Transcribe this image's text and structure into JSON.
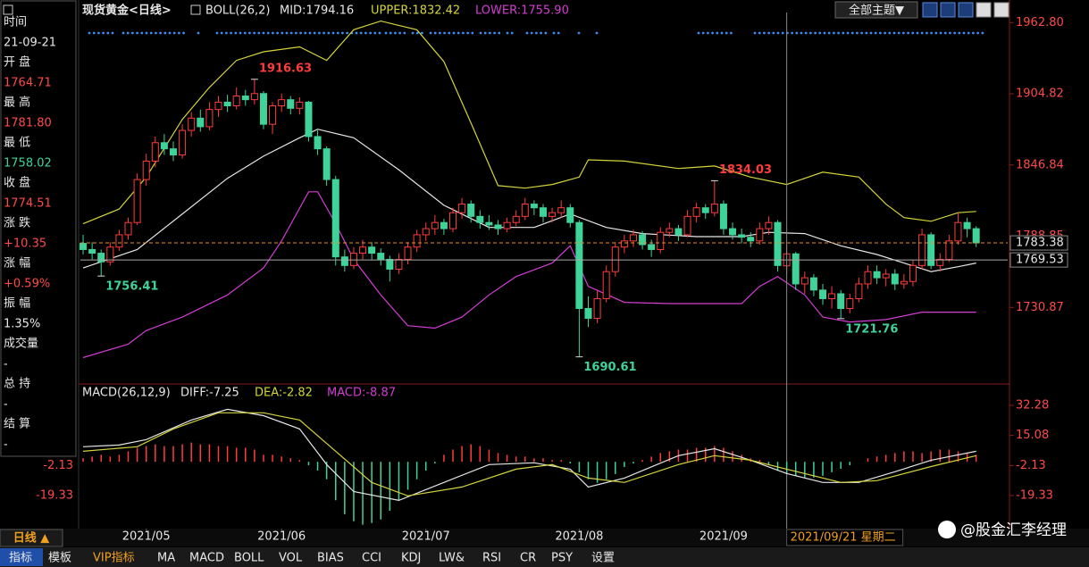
{
  "header": {
    "tab": "日线 ▲",
    "theme": "全部主题▼",
    "watermark": "@股金汇李经理"
  },
  "sidebar": {
    "rows": [
      {
        "label": "时间",
        "value": "21-09-21",
        "color": "#e8e8e8"
      },
      {
        "label": "开 盘",
        "value": "1764.71",
        "color": "#ff4a4a"
      },
      {
        "label": "最 高",
        "value": "1781.80",
        "color": "#ff4a4a"
      },
      {
        "label": "最 低",
        "value": "1758.02",
        "color": "#3fd39a"
      },
      {
        "label": "收 盘",
        "value": "1774.51",
        "color": "#ff4a4a"
      },
      {
        "label": "涨 跌",
        "value": "+10.35",
        "color": "#ff4a4a"
      },
      {
        "label": "涨 幅",
        "value": "+0.59%",
        "color": "#ff4a4a"
      },
      {
        "label": "振 幅",
        "value": "1.35%",
        "color": "#e8e8e8"
      },
      {
        "label": "成交量",
        "value": "-",
        "color": "#e8e8e8"
      },
      {
        "label": "总 持",
        "value": "-",
        "color": "#e8e8e8"
      },
      {
        "label": "结 算",
        "value": "-",
        "color": "#e8e8e8"
      }
    ]
  },
  "tabs": [
    "指标",
    "模板",
    "VIP指标",
    "MA",
    "MACD",
    "BOLL",
    "VOL",
    "BIAS",
    "CCI",
    "KDJ",
    "LW&",
    "RSI",
    "CR",
    "PSY",
    "设置"
  ],
  "chart_data": [
    {
      "type": "candlestick",
      "title": "现货黄金<日线>",
      "indicator": "BOLL(26,2)",
      "up_color": "#ff3c3c",
      "down_color": "#3fd39a",
      "xlim": [
        -0.3,
        102.5
      ],
      "ylim": [
        1670,
        1971
      ],
      "yticks": [
        {
          "value": 1962.8,
          "label": "1962.80"
        },
        1904.82,
        1846.84,
        1788.85,
        1730.87
      ],
      "xticks": [
        {
          "value": 7,
          "label": "2021/05"
        },
        {
          "value": 22,
          "label": "2021/06"
        },
        {
          "value": 38,
          "label": "2021/07"
        },
        {
          "value": 55,
          "label": "2021/08"
        },
        {
          "value": 71,
          "label": "2021/09"
        }
      ],
      "last_price": 1783.38,
      "crosshair": {
        "x": 78,
        "y": 1769.53,
        "label": "2021/09/21 星期二"
      },
      "candles": [
        [
          1783,
          1790,
          1774,
          1778
        ],
        [
          1778,
          1784,
          1770,
          1775
        ],
        [
          1775,
          1778,
          1756.41,
          1768
        ],
        [
          1768,
          1784,
          1765,
          1780
        ],
        [
          1780,
          1794,
          1777,
          1790
        ],
        [
          1790,
          1804,
          1786,
          1800
        ],
        [
          1800,
          1840,
          1798,
          1835
        ],
        [
          1835,
          1856,
          1830,
          1850
        ],
        [
          1850,
          1870,
          1845,
          1865
        ],
        [
          1865,
          1872,
          1855,
          1860
        ],
        [
          1860,
          1866,
          1850,
          1855
        ],
        [
          1855,
          1880,
          1852,
          1875
        ],
        [
          1875,
          1890,
          1870,
          1885
        ],
        [
          1885,
          1892,
          1874,
          1878
        ],
        [
          1878,
          1898,
          1875,
          1892
        ],
        [
          1892,
          1903,
          1886,
          1898
        ],
        [
          1898,
          1904,
          1890,
          1895
        ],
        [
          1895,
          1910,
          1892,
          1903
        ],
        [
          1903,
          1908,
          1895,
          1900
        ],
        [
          1900,
          1916.63,
          1896,
          1905
        ],
        [
          1905,
          1907,
          1876,
          1880
        ],
        [
          1880,
          1898,
          1872,
          1895
        ],
        [
          1895,
          1905,
          1890,
          1900
        ],
        [
          1900,
          1903,
          1888,
          1893
        ],
        [
          1893,
          1902,
          1888,
          1898
        ],
        [
          1898,
          1899,
          1866,
          1870
        ],
        [
          1870,
          1875,
          1855,
          1860
        ],
        [
          1860,
          1862,
          1830,
          1835
        ],
        [
          1835,
          1838,
          1765,
          1772
        ],
        [
          1772,
          1778,
          1760,
          1765
        ],
        [
          1765,
          1780,
          1762,
          1775
        ],
        [
          1775,
          1786,
          1770,
          1780
        ],
        [
          1780,
          1784,
          1770,
          1775
        ],
        [
          1775,
          1779,
          1765,
          1770
        ],
        [
          1770,
          1773,
          1752,
          1762
        ],
        [
          1762,
          1775,
          1758,
          1770
        ],
        [
          1770,
          1784,
          1766,
          1780
        ],
        [
          1780,
          1794,
          1776,
          1790
        ],
        [
          1790,
          1800,
          1785,
          1795
        ],
        [
          1795,
          1806,
          1790,
          1800
        ],
        [
          1800,
          1803,
          1790,
          1795
        ],
        [
          1795,
          1812,
          1792,
          1808
        ],
        [
          1808,
          1820,
          1803,
          1815
        ],
        [
          1815,
          1818,
          1800,
          1805
        ],
        [
          1805,
          1810,
          1795,
          1800
        ],
        [
          1800,
          1806,
          1794,
          1798
        ],
        [
          1798,
          1802,
          1790,
          1795
        ],
        [
          1795,
          1804,
          1792,
          1800
        ],
        [
          1800,
          1810,
          1797,
          1805
        ],
        [
          1805,
          1820,
          1802,
          1815
        ],
        [
          1815,
          1818,
          1806,
          1812
        ],
        [
          1812,
          1815,
          1800,
          1805
        ],
        [
          1805,
          1812,
          1800,
          1808
        ],
        [
          1808,
          1818,
          1804,
          1812
        ],
        [
          1812,
          1815,
          1796,
          1800
        ],
        [
          1800,
          1802,
          1690.61,
          1730
        ],
        [
          1730,
          1740,
          1715,
          1722
        ],
        [
          1722,
          1745,
          1718,
          1738
        ],
        [
          1738,
          1765,
          1735,
          1760
        ],
        [
          1760,
          1784,
          1756,
          1780
        ],
        [
          1780,
          1790,
          1775,
          1785
        ],
        [
          1785,
          1794,
          1780,
          1790
        ],
        [
          1790,
          1793,
          1778,
          1782
        ],
        [
          1782,
          1786,
          1772,
          1778
        ],
        [
          1778,
          1796,
          1775,
          1792
        ],
        [
          1792,
          1800,
          1788,
          1795
        ],
        [
          1795,
          1798,
          1785,
          1790
        ],
        [
          1790,
          1810,
          1788,
          1805
        ],
        [
          1805,
          1816,
          1800,
          1812
        ],
        [
          1812,
          1815,
          1803,
          1808
        ],
        [
          1808,
          1834.03,
          1805,
          1815
        ],
        [
          1815,
          1818,
          1790,
          1795
        ],
        [
          1795,
          1800,
          1786,
          1790
        ],
        [
          1790,
          1795,
          1783,
          1788
        ],
        [
          1788,
          1792,
          1780,
          1785
        ],
        [
          1785,
          1800,
          1782,
          1795
        ],
        [
          1795,
          1805,
          1790,
          1800
        ],
        [
          1800,
          1802,
          1760,
          1765
        ],
        [
          1764.71,
          1781.8,
          1758.02,
          1774.51
        ],
        [
          1774.51,
          1776,
          1745,
          1750
        ],
        [
          1750,
          1760,
          1742,
          1755
        ],
        [
          1755,
          1758,
          1740,
          1745
        ],
        [
          1745,
          1750,
          1733,
          1738
        ],
        [
          1738,
          1748,
          1730,
          1742
        ],
        [
          1742,
          1745,
          1721.76,
          1730
        ],
        [
          1730,
          1742,
          1726,
          1738
        ],
        [
          1738,
          1755,
          1735,
          1750
        ],
        [
          1750,
          1765,
          1746,
          1760
        ],
        [
          1760,
          1765,
          1750,
          1755
        ],
        [
          1755,
          1762,
          1748,
          1758
        ],
        [
          1758,
          1762,
          1745,
          1750
        ],
        [
          1750,
          1758,
          1746,
          1752
        ],
        [
          1752,
          1770,
          1748,
          1765
        ],
        [
          1765,
          1795,
          1762,
          1790
        ],
        [
          1790,
          1792,
          1762,
          1765
        ],
        [
          1765,
          1775,
          1760,
          1770
        ],
        [
          1770,
          1790,
          1768,
          1785
        ],
        [
          1785,
          1808,
          1782,
          1800
        ],
        [
          1800,
          1804,
          1788,
          1795
        ],
        [
          1795,
          1797,
          1780,
          1783.38
        ]
      ],
      "series": [
        {
          "name": "MID:1794.16",
          "color": "#e6e6e6",
          "x": [
            0,
            6,
            11,
            16,
            20,
            24,
            26,
            30,
            35,
            40,
            45,
            50,
            54,
            58,
            62,
            68,
            73,
            76,
            80,
            84,
            88,
            91,
            94,
            97,
            99
          ],
          "values": [
            1763,
            1778,
            1807,
            1836,
            1854,
            1869,
            1876,
            1869,
            1843,
            1814,
            1796,
            1796,
            1807,
            1796,
            1791,
            1788.5,
            1788.5,
            1792,
            1791,
            1781,
            1774,
            1767,
            1760,
            1764,
            1767
          ]
        },
        {
          "name": "UPPER:1832.42",
          "color": "#d4d43c",
          "x": [
            0,
            4,
            7,
            11,
            14,
            17,
            20,
            24,
            27,
            30,
            33,
            37,
            40,
            43,
            46,
            49,
            52,
            55,
            56,
            60,
            66,
            70,
            74,
            78,
            82,
            86,
            89,
            91,
            94,
            97,
            99
          ],
          "values": [
            1799,
            1811,
            1837,
            1884,
            1910,
            1932,
            1939,
            1943,
            1932,
            1957,
            1964,
            1957,
            1931,
            1881,
            1830,
            1828,
            1831,
            1837,
            1851,
            1850,
            1844,
            1846,
            1837,
            1831,
            1841,
            1837,
            1815,
            1804,
            1801,
            1808,
            1809
          ]
        },
        {
          "name": "LOWER:1755.90",
          "color": "#d43cd4",
          "x": [
            0,
            5,
            7,
            11,
            16,
            20,
            22,
            25,
            26,
            28,
            30,
            33,
            36,
            39,
            42,
            45,
            48,
            52,
            54,
            56,
            60,
            65,
            73,
            75,
            77,
            80,
            82,
            85,
            89,
            93,
            96,
            99
          ],
          "values": [
            1690,
            1701,
            1712,
            1723,
            1741,
            1763,
            1785,
            1825,
            1825,
            1799,
            1770,
            1741,
            1716,
            1714,
            1723,
            1741,
            1756,
            1767,
            1781,
            1748,
            1735,
            1734,
            1734,
            1748,
            1756,
            1741,
            1723,
            1719,
            1721,
            1727,
            1727,
            1727
          ]
        }
      ]
    },
    {
      "type": "macd",
      "indicator": "MACD(26,12,9)",
      "xlim": [
        -0.3,
        102.5
      ],
      "ylim": [
        -37.2,
        43.5
      ],
      "yticks": [
        32.28,
        15.08,
        -2.13,
        -19.33
      ],
      "series": [
        {
          "name": "DIFF:-7.25",
          "color": "#e6e6e6",
          "x": [
            0,
            4,
            7,
            12,
            16,
            20,
            24,
            27,
            30,
            35,
            40,
            45,
            50,
            54,
            56,
            60,
            66,
            70,
            74,
            78,
            82,
            86,
            90,
            94,
            99
          ],
          "values": [
            8.6,
            9.6,
            12.7,
            23.9,
            30,
            26.4,
            18.8,
            -1.6,
            -17,
            -22.1,
            -11.8,
            -1.6,
            -0.6,
            -4.2,
            -14.4,
            -9.3,
            3.5,
            7.5,
            0.9,
            -6.7,
            -11.8,
            -11.8,
            -5.7,
            0.9,
            6
          ]
        },
        {
          "name": "DEA:-2.82",
          "color": "#d4d43c",
          "x": [
            0,
            6,
            10,
            15,
            20,
            24,
            28,
            32,
            36,
            42,
            48,
            52,
            56,
            60,
            66,
            70,
            74,
            78,
            84,
            88,
            94,
            99
          ],
          "values": [
            6,
            8.6,
            18.8,
            28,
            28,
            23.9,
            6,
            -11.8,
            -19.5,
            -14.4,
            -4.2,
            -1.6,
            -9.3,
            -11.8,
            -1.6,
            3.5,
            0.9,
            -4.2,
            -11.8,
            -10.8,
            -2.7,
            3.5
          ]
        },
        {
          "name": "MACD:-8.87",
          "color": "#d43cd4",
          "bars": true,
          "up_color": "#ff3c3c",
          "down_color": "#3fd39a",
          "values": [
            2,
            3,
            4,
            3,
            4,
            6,
            8,
            9,
            10,
            9,
            9,
            10,
            11,
            10,
            10,
            9,
            9,
            8,
            8,
            7,
            4,
            4,
            3,
            2,
            1,
            -2,
            -5,
            -10,
            -22,
            -30,
            -34,
            -36,
            -35,
            -33,
            -28,
            -22,
            -16,
            -10,
            -5,
            -1,
            4,
            7,
            9,
            10,
            9,
            7,
            5,
            4,
            3,
            3,
            2,
            2,
            1,
            1,
            -1,
            -6,
            -10,
            -12,
            -10,
            -7,
            -3,
            -1,
            1,
            3,
            5,
            6,
            7,
            7,
            8,
            8,
            9,
            8,
            6,
            4,
            2,
            1,
            -2,
            -5,
            -7,
            -8,
            -9,
            -9,
            -8,
            -6,
            -4,
            -2,
            0,
            2,
            3,
            4,
            5,
            6,
            6,
            5,
            6,
            7,
            7,
            6,
            5,
            4
          ]
        }
      ]
    }
  ]
}
